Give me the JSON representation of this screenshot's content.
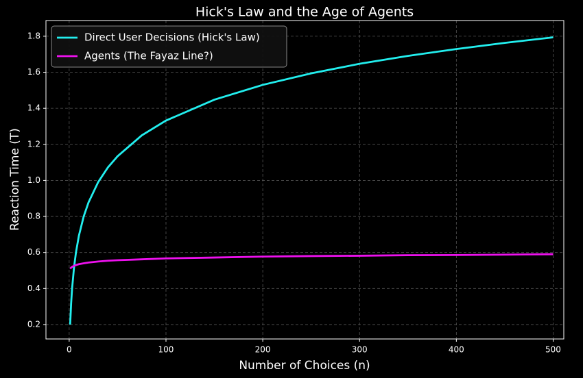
{
  "chart_data": {
    "type": "line",
    "title": "Hick's Law and the Age of Agents",
    "x_label": "Number of Choices (n)",
    "y_label": "Reaction Time (T)",
    "x": [
      1,
      2,
      3,
      5,
      7,
      10,
      15,
      20,
      30,
      40,
      50,
      75,
      100,
      150,
      200,
      250,
      300,
      350,
      400,
      450,
      500
    ],
    "series": [
      {
        "name": "Direct User Decisions (Hick's Law)",
        "color": "#22eeee",
        "values": [
          0.2,
          0.317,
          0.4,
          0.517,
          0.6,
          0.692,
          0.8,
          0.878,
          0.991,
          1.072,
          1.134,
          1.25,
          1.332,
          1.448,
          1.53,
          1.594,
          1.647,
          1.691,
          1.729,
          1.763,
          1.794
        ]
      },
      {
        "name": "Agents (The Fayaz Line?)",
        "color": "#ee11ee",
        "values": [
          0.51,
          0.516,
          0.52,
          0.526,
          0.53,
          0.535,
          0.54,
          0.544,
          0.55,
          0.554,
          0.557,
          0.562,
          0.567,
          0.572,
          0.577,
          0.58,
          0.582,
          0.585,
          0.586,
          0.588,
          0.59
        ]
      }
    ],
    "xlim": [
      -24,
      511
    ],
    "ylim": [
      0.12,
      1.887
    ],
    "xticks": [
      0,
      100,
      200,
      300,
      400,
      500
    ],
    "yticks": [
      0.2,
      0.4,
      0.6,
      0.8,
      1.0,
      1.2,
      1.4,
      1.6,
      1.8
    ],
    "grid": true,
    "legend": "upper-left"
  }
}
